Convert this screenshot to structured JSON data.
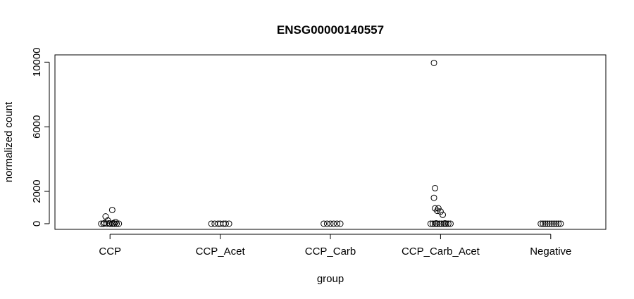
{
  "chart_data": {
    "type": "scatter",
    "title": "ENSG00000140557",
    "xlabel": "group",
    "ylabel": "normalized count",
    "categories": [
      "CCP",
      "CCP_Acet",
      "CCP_Carb",
      "CCP_Carb_Acet",
      "Negative"
    ],
    "yticks": [
      0,
      2000,
      6000,
      10000
    ],
    "ylim": [
      -350,
      10450
    ],
    "grid": false,
    "legend": "none",
    "points_color": "#000000",
    "series": [
      {
        "category": "CCP",
        "points": [
          {
            "dx": 0.02,
            "y": 850
          },
          {
            "dx": -0.04,
            "y": 450
          },
          {
            "dx": -0.02,
            "y": 200
          },
          {
            "dx": 0.05,
            "y": 100
          },
          {
            "dx": -0.08,
            "y": 0
          },
          {
            "dx": -0.06,
            "y": 0
          },
          {
            "dx": -0.03,
            "y": 0
          },
          {
            "dx": 0.0,
            "y": 0
          },
          {
            "dx": 0.02,
            "y": 0
          },
          {
            "dx": 0.04,
            "y": 0
          },
          {
            "dx": 0.06,
            "y": 0
          },
          {
            "dx": 0.08,
            "y": 0
          },
          {
            "dx": -0.01,
            "y": 20
          },
          {
            "dx": 0.03,
            "y": 30
          },
          {
            "dx": -0.05,
            "y": 40
          }
        ]
      },
      {
        "category": "CCP_Acet",
        "points": [
          {
            "dx": -0.08,
            "y": 0
          },
          {
            "dx": -0.05,
            "y": 0
          },
          {
            "dx": -0.02,
            "y": 0
          },
          {
            "dx": 0.0,
            "y": 0
          },
          {
            "dx": 0.03,
            "y": 0
          },
          {
            "dx": 0.05,
            "y": 0
          },
          {
            "dx": 0.08,
            "y": 0
          }
        ]
      },
      {
        "category": "CCP_Carb",
        "points": [
          {
            "dx": -0.06,
            "y": 0
          },
          {
            "dx": -0.03,
            "y": 0
          },
          {
            "dx": 0.0,
            "y": 0
          },
          {
            "dx": 0.03,
            "y": 0
          },
          {
            "dx": 0.06,
            "y": 0
          },
          {
            "dx": 0.09,
            "y": 0
          }
        ]
      },
      {
        "category": "CCP_Carb_Acet",
        "points": [
          {
            "dx": -0.06,
            "y": 9950
          },
          {
            "dx": -0.05,
            "y": 2200
          },
          {
            "dx": -0.06,
            "y": 1600
          },
          {
            "dx": -0.05,
            "y": 950
          },
          {
            "dx": -0.02,
            "y": 950
          },
          {
            "dx": -0.03,
            "y": 800
          },
          {
            "dx": 0.0,
            "y": 750
          },
          {
            "dx": 0.02,
            "y": 550
          },
          {
            "dx": -0.09,
            "y": 0
          },
          {
            "dx": -0.07,
            "y": 0
          },
          {
            "dx": -0.05,
            "y": 0
          },
          {
            "dx": -0.03,
            "y": 0
          },
          {
            "dx": -0.01,
            "y": 0
          },
          {
            "dx": 0.01,
            "y": 0
          },
          {
            "dx": 0.03,
            "y": 0
          },
          {
            "dx": 0.05,
            "y": 0
          },
          {
            "dx": 0.07,
            "y": 0
          },
          {
            "dx": 0.09,
            "y": 0
          },
          {
            "dx": -0.04,
            "y": 20
          },
          {
            "dx": 0.04,
            "y": 20
          }
        ]
      },
      {
        "category": "Negative",
        "points": [
          {
            "dx": -0.09,
            "y": 0
          },
          {
            "dx": -0.07,
            "y": 0
          },
          {
            "dx": -0.05,
            "y": 0
          },
          {
            "dx": -0.03,
            "y": 0
          },
          {
            "dx": -0.01,
            "y": 0
          },
          {
            "dx": 0.01,
            "y": 0
          },
          {
            "dx": 0.03,
            "y": 0
          },
          {
            "dx": 0.05,
            "y": 0
          },
          {
            "dx": 0.07,
            "y": 0
          },
          {
            "dx": 0.09,
            "y": 0
          }
        ]
      }
    ]
  }
}
